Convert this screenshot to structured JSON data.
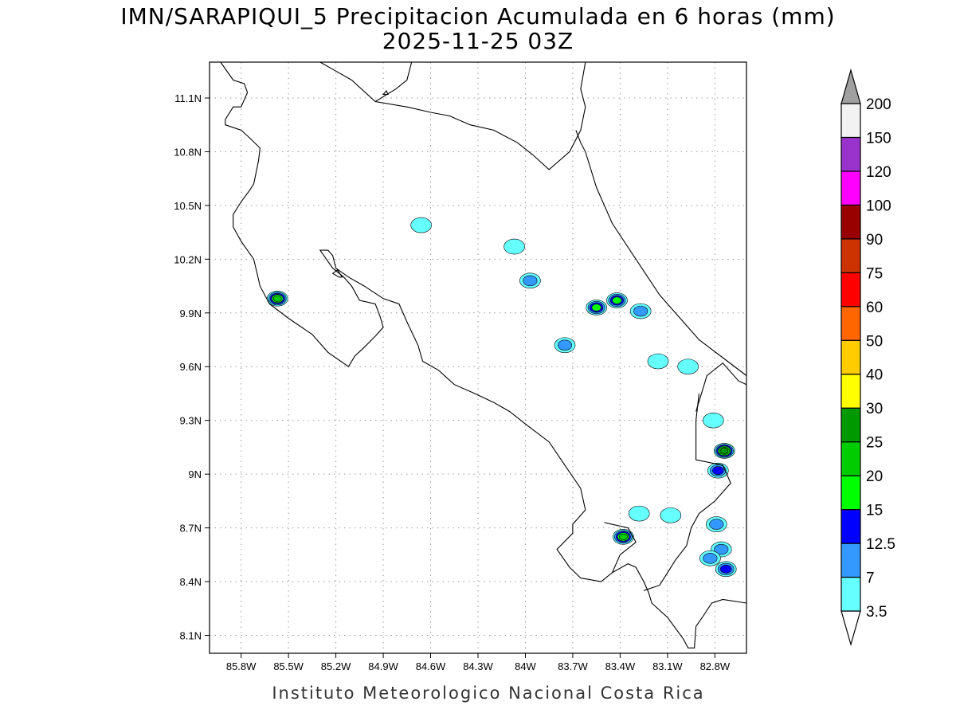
{
  "title": {
    "line1": "IMN/SARAPIQUI_5 Precipitacion Acumulada en 6 horas (mm)",
    "line2": "2025-11-25 03Z"
  },
  "credit": "Instituto Meteorologico Nacional Costa Rica",
  "map": {
    "lon_range": [
      -86.0,
      -82.6
    ],
    "lat_range": [
      8.0,
      11.3
    ],
    "x_ticks": [
      {
        "value": -85.8,
        "label": "85.8W"
      },
      {
        "value": -85.5,
        "label": "85.5W"
      },
      {
        "value": -85.2,
        "label": "85.2W"
      },
      {
        "value": -84.9,
        "label": "84.9W"
      },
      {
        "value": -84.6,
        "label": "84.6W"
      },
      {
        "value": -84.3,
        "label": "84.3W"
      },
      {
        "value": -84.0,
        "label": "84W"
      },
      {
        "value": -83.7,
        "label": "83.7W"
      },
      {
        "value": -83.4,
        "label": "83.4W"
      },
      {
        "value": -83.1,
        "label": "83.1W"
      },
      {
        "value": -82.8,
        "label": "82.8W"
      }
    ],
    "y_ticks": [
      {
        "value": 11.1,
        "label": "11.1N"
      },
      {
        "value": 10.8,
        "label": "10.8N"
      },
      {
        "value": 10.5,
        "label": "10.5N"
      },
      {
        "value": 10.2,
        "label": "10.2N"
      },
      {
        "value": 9.9,
        "label": "9.9N"
      },
      {
        "value": 9.6,
        "label": "9.6N"
      },
      {
        "value": 9.3,
        "label": "9.3N"
      },
      {
        "value": 9.0,
        "label": "9N"
      },
      {
        "value": 8.7,
        "label": "8.7N"
      },
      {
        "value": 8.4,
        "label": "8.4N"
      },
      {
        "value": 8.1,
        "label": "8.1N"
      }
    ],
    "grid": "dotted",
    "coastlines": [
      [
        [
          -85.93,
          11.3
        ],
        [
          -85.85,
          11.2
        ],
        [
          -85.78,
          11.18
        ],
        [
          -85.76,
          11.13
        ],
        [
          -85.8,
          11.05
        ],
        [
          -85.85,
          11.05
        ],
        [
          -85.9,
          10.98
        ],
        [
          -85.9,
          10.95
        ],
        [
          -85.8,
          10.92
        ],
        [
          -85.75,
          10.88
        ],
        [
          -85.68,
          10.82
        ],
        [
          -85.69,
          10.75
        ],
        [
          -85.72,
          10.62
        ],
        [
          -85.75,
          10.58
        ],
        [
          -85.8,
          10.52
        ],
        [
          -85.85,
          10.45
        ],
        [
          -85.85,
          10.38
        ],
        [
          -85.8,
          10.3
        ],
        [
          -85.72,
          10.2
        ],
        [
          -85.68,
          10.05
        ],
        [
          -85.62,
          9.95
        ],
        [
          -85.5,
          9.87
        ],
        [
          -85.35,
          9.78
        ],
        [
          -85.25,
          9.68
        ],
        [
          -85.12,
          9.6
        ],
        [
          -85.08,
          9.66
        ],
        [
          -85.03,
          9.7
        ],
        [
          -84.95,
          9.77
        ],
        [
          -84.9,
          9.82
        ],
        [
          -84.92,
          9.88
        ],
        [
          -84.95,
          9.95
        ],
        [
          -85.05,
          9.97
        ],
        [
          -85.1,
          10.05
        ],
        [
          -85.15,
          10.1
        ],
        [
          -85.22,
          10.15
        ],
        [
          -85.3,
          10.25
        ],
        [
          -85.25,
          10.25
        ],
        [
          -85.22,
          10.22
        ],
        [
          -85.2,
          10.15
        ],
        [
          -85.12,
          10.1
        ],
        [
          -85.02,
          10.05
        ],
        [
          -84.9,
          9.98
        ],
        [
          -84.8,
          9.95
        ],
        [
          -84.75,
          9.85
        ],
        [
          -84.68,
          9.72
        ],
        [
          -84.65,
          9.63
        ],
        [
          -84.55,
          9.58
        ],
        [
          -84.45,
          9.5
        ],
        [
          -84.32,
          9.45
        ],
        [
          -84.2,
          9.4
        ],
        [
          -84.1,
          9.35
        ],
        [
          -84.0,
          9.28
        ],
        [
          -83.85,
          9.18
        ],
        [
          -83.75,
          9.05
        ],
        [
          -83.65,
          8.92
        ],
        [
          -83.62,
          8.8
        ],
        [
          -83.7,
          8.72
        ],
        [
          -83.7,
          8.67
        ],
        [
          -83.8,
          8.58
        ],
        [
          -83.72,
          8.48
        ],
        [
          -83.65,
          8.42
        ],
        [
          -83.52,
          8.4
        ],
        [
          -83.45,
          8.45
        ],
        [
          -83.35,
          8.5
        ],
        [
          -83.3,
          8.48
        ],
        [
          -83.25,
          8.4
        ],
        [
          -83.22,
          8.34
        ],
        [
          -83.2,
          8.28
        ],
        [
          -83.1,
          8.2
        ],
        [
          -83.0,
          8.08
        ],
        [
          -82.97,
          8.03
        ],
        [
          -82.93,
          8.03
        ],
        [
          -82.92,
          8.15
        ],
        [
          -82.88,
          8.2
        ],
        [
          -82.82,
          8.28
        ],
        [
          -82.75,
          8.3
        ],
        [
          -82.6,
          8.28
        ]
      ],
      [
        [
          -84.72,
          11.3
        ],
        [
          -84.75,
          11.2
        ],
        [
          -84.82,
          11.15
        ],
        [
          -84.95,
          11.08
        ],
        [
          -85.1,
          11.2
        ],
        [
          -85.2,
          11.25
        ],
        [
          -85.3,
          11.3
        ]
      ],
      [
        [
          -84.95,
          11.08
        ],
        [
          -84.75,
          11.05
        ],
        [
          -84.6,
          11.02
        ],
        [
          -84.48,
          11.0
        ],
        [
          -84.35,
          10.95
        ],
        [
          -84.2,
          10.92
        ],
        [
          -84.05,
          10.85
        ],
        [
          -83.95,
          10.78
        ],
        [
          -83.85,
          10.7
        ],
        [
          -83.72,
          10.8
        ],
        [
          -83.65,
          10.92
        ],
        [
          -83.62,
          11.05
        ],
        [
          -83.65,
          11.15
        ],
        [
          -83.62,
          11.3
        ]
      ],
      [
        [
          -83.68,
          10.92
        ],
        [
          -83.65,
          10.85
        ],
        [
          -83.62,
          10.8
        ],
        [
          -83.55,
          10.6
        ],
        [
          -83.45,
          10.4
        ],
        [
          -83.3,
          10.2
        ],
        [
          -83.15,
          10.0
        ],
        [
          -83.0,
          9.85
        ],
        [
          -82.9,
          9.75
        ],
        [
          -82.75,
          9.65
        ],
        [
          -82.6,
          9.55
        ]
      ],
      [
        [
          -82.9,
          9.45
        ],
        [
          -82.92,
          9.3
        ],
        [
          -82.92,
          9.08
        ],
        [
          -82.75,
          9.05
        ],
        [
          -82.7,
          8.95
        ],
        [
          -82.8,
          8.85
        ],
        [
          -82.9,
          8.78
        ],
        [
          -82.95,
          8.7
        ],
        [
          -82.98,
          8.6
        ],
        [
          -83.05,
          8.52
        ],
        [
          -83.1,
          8.45
        ],
        [
          -83.15,
          8.38
        ],
        [
          -83.25,
          8.35
        ]
      ],
      [
        [
          -83.5,
          8.73
        ],
        [
          -83.35,
          8.7
        ],
        [
          -83.3,
          8.62
        ],
        [
          -83.4,
          8.55
        ],
        [
          -83.45,
          8.45
        ]
      ],
      [
        [
          -82.92,
          9.35
        ],
        [
          -82.85,
          9.55
        ],
        [
          -82.75,
          9.62
        ],
        [
          -82.65,
          9.52
        ],
        [
          -82.6,
          9.5
        ]
      ]
    ],
    "islands": [
      [
        [
          -85.22,
          10.12
        ],
        [
          -85.18,
          10.1
        ],
        [
          -85.16,
          10.1
        ],
        [
          -85.19,
          10.14
        ],
        [
          -85.22,
          10.12
        ]
      ],
      [
        [
          -84.9,
          11.12
        ],
        [
          -84.88,
          11.14
        ],
        [
          -84.87,
          11.12
        ],
        [
          -84.9,
          11.12
        ]
      ]
    ]
  },
  "colorbar": {
    "levels": [
      "3.5",
      "7",
      "12.5",
      "15",
      "20",
      "25",
      "30",
      "40",
      "50",
      "60",
      "75",
      "90",
      "100",
      "120",
      "150",
      "200"
    ],
    "colors": [
      "#66ffff",
      "#3399ff",
      "#0000ff",
      "#00ff00",
      "#00cc00",
      "#009900",
      "#ffff00",
      "#ffcc00",
      "#ff6600",
      "#ff0000",
      "#cc3300",
      "#990000",
      "#ff00ff",
      "#9933cc",
      "#f2f2f2",
      "#a0a0a0"
    ]
  },
  "precip_cells": [
    {
      "lon": -85.57,
      "lat": 9.98,
      "mm": 20
    },
    {
      "lon": -84.66,
      "lat": 10.39,
      "mm": 3.5
    },
    {
      "lon": -83.97,
      "lat": 10.08,
      "mm": 7
    },
    {
      "lon": -84.07,
      "lat": 10.27,
      "mm": 3.5
    },
    {
      "lon": -83.55,
      "lat": 9.93,
      "mm": 15
    },
    {
      "lon": -83.42,
      "lat": 9.97,
      "mm": 15
    },
    {
      "lon": -83.27,
      "lat": 9.91,
      "mm": 7
    },
    {
      "lon": -83.75,
      "lat": 9.72,
      "mm": 7
    },
    {
      "lon": -82.74,
      "lat": 9.13,
      "mm": 25
    },
    {
      "lon": -82.78,
      "lat": 9.02,
      "mm": 12.5
    },
    {
      "lon": -82.81,
      "lat": 9.3,
      "mm": 3.5
    },
    {
      "lon": -83.38,
      "lat": 8.65,
      "mm": 20
    },
    {
      "lon": -83.28,
      "lat": 8.78,
      "mm": 3.5
    },
    {
      "lon": -83.08,
      "lat": 8.77,
      "mm": 3.5
    },
    {
      "lon": -82.79,
      "lat": 8.72,
      "mm": 7
    },
    {
      "lon": -82.73,
      "lat": 8.47,
      "mm": 12.5
    },
    {
      "lon": -82.76,
      "lat": 8.58,
      "mm": 7
    },
    {
      "lon": -82.83,
      "lat": 8.53,
      "mm": 7
    },
    {
      "lon": -83.16,
      "lat": 9.63,
      "mm": 3.5
    },
    {
      "lon": -82.97,
      "lat": 9.6,
      "mm": 3.5
    }
  ]
}
